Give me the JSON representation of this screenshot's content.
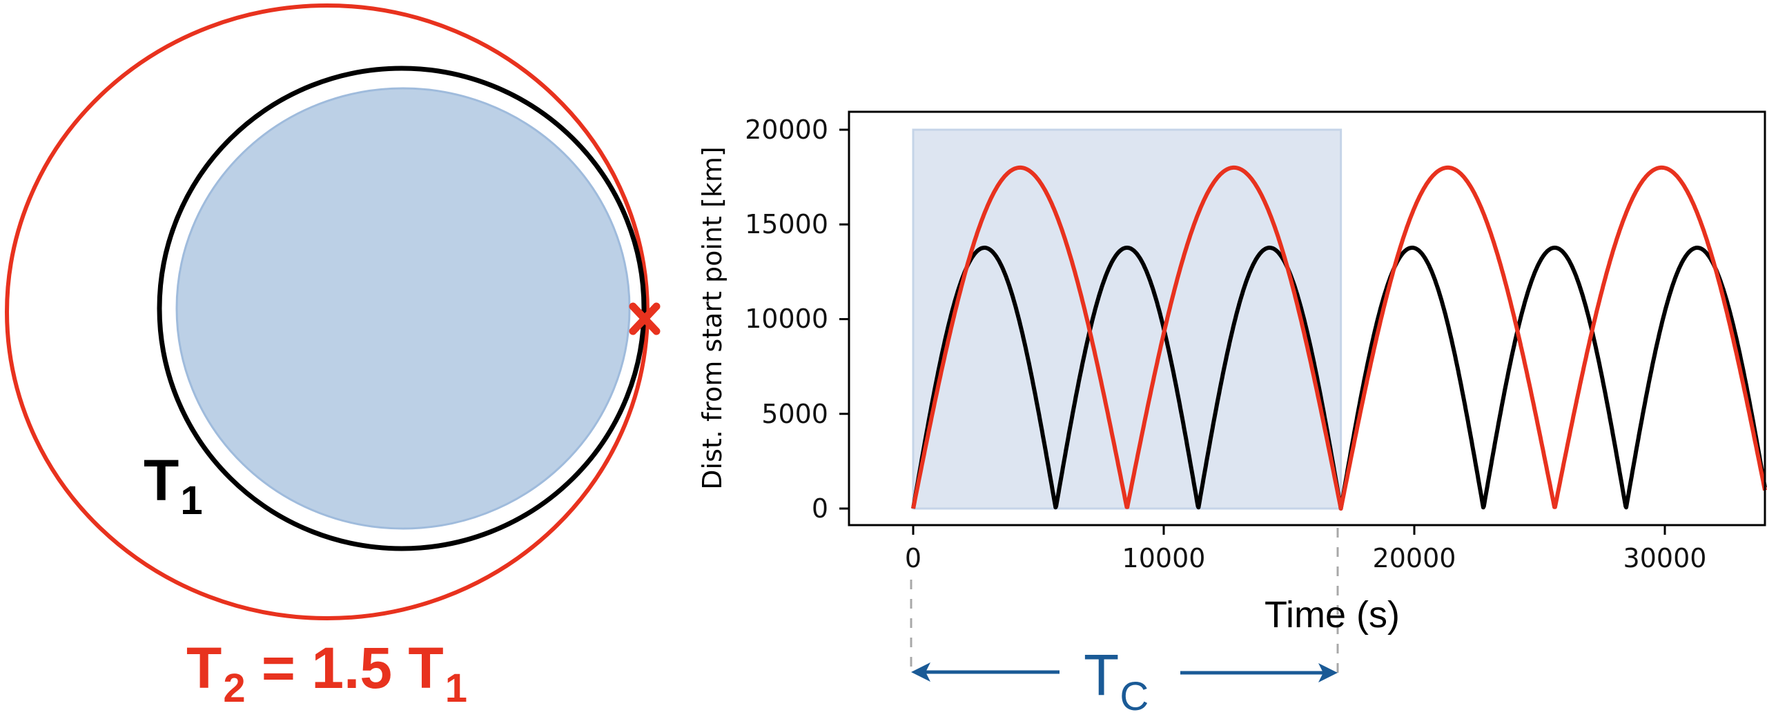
{
  "orbit_diagram": {
    "inner_orbit_label": {
      "main": "T",
      "sub": "1"
    },
    "outer_orbit_label": {
      "main": "T",
      "sub": "2",
      "rest": "= 1.5 T",
      "rest_sub": "1"
    },
    "marker": "x-marker",
    "colors": {
      "outer_orbit": "#e8321e",
      "inner_orbit": "#000000",
      "planet_fill": "#bcd0e6",
      "planet_edge": "#9fbbdc",
      "marker": "#e8321e"
    }
  },
  "annotation": {
    "tc_label": {
      "main": "T",
      "sub": "C"
    },
    "color": "#1a5a96",
    "dash_color": "#a8a8a8"
  },
  "chart_data": {
    "type": "line",
    "title": "",
    "xlabel": "Time (s)",
    "ylabel": "Dist. from start point [km]",
    "xlim": [
      -1300,
      34000
    ],
    "ylim": [
      -900,
      21000
    ],
    "xticks": [
      0,
      10000,
      20000,
      30000
    ],
    "xtick_labels": [
      "0",
      "10000",
      "20000",
      "30000"
    ],
    "yticks": [
      0,
      5000,
      10000,
      15000,
      20000
    ],
    "ytick_labels": [
      "0",
      "5000",
      "10000",
      "15000",
      "20000"
    ],
    "grid": false,
    "legend": null,
    "series": [
      {
        "name": "Orbit T1 (black)",
        "color": "#000000",
        "period_s": 5690,
        "peak_km": 13770,
        "minima_s": [
          0,
          5690,
          11380,
          17070,
          22760,
          28450
        ],
        "peaks_s": [
          2845,
          8535,
          14225,
          19915,
          25605,
          31295
        ]
      },
      {
        "name": "Orbit T2 = 1.5 T1 (red)",
        "color": "#e8321e",
        "period_s": 8535,
        "peak_km": 18000,
        "minima_s": [
          0,
          8535,
          17070,
          25605
        ],
        "peaks_s": [
          4268,
          12803,
          21338,
          29873
        ]
      }
    ],
    "shaded_region": {
      "x": [
        0,
        17070
      ],
      "y": [
        0,
        20000
      ],
      "fill": "#dde5f1",
      "edge": "#c5d4e8",
      "label": "T_C"
    },
    "annotations": [
      {
        "text": "T_C",
        "x_span": [
          0,
          17070
        ],
        "style": "double-arrow"
      }
    ]
  }
}
